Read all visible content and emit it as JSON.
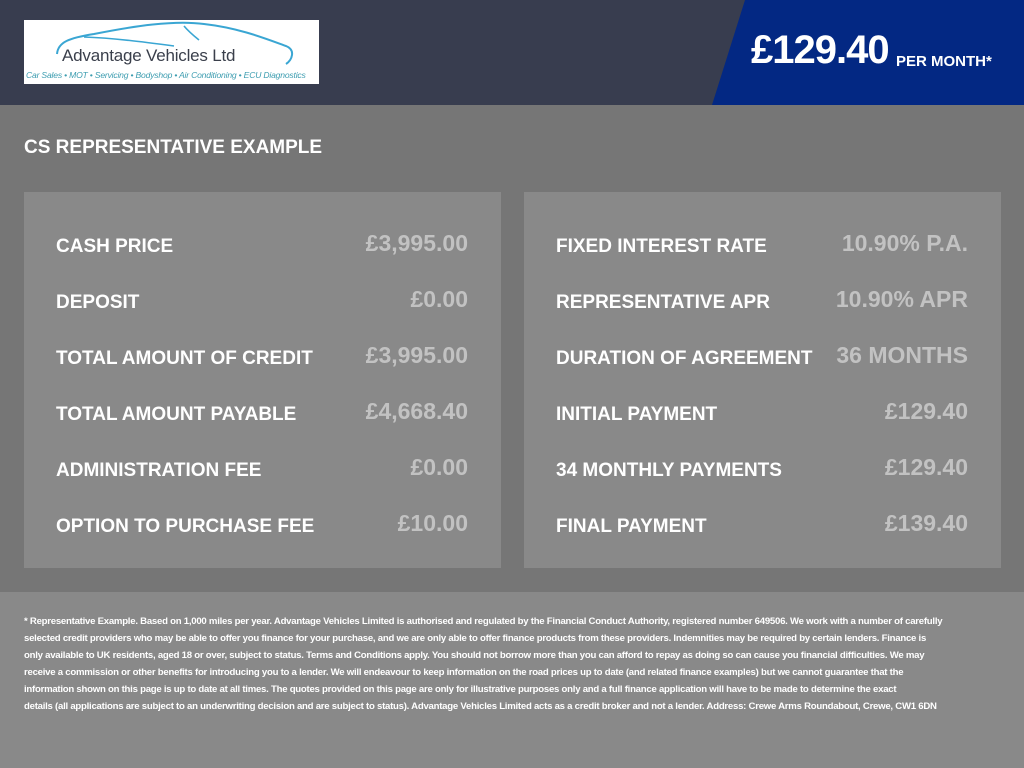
{
  "header": {
    "logo": {
      "name": "Advantage Vehicles Ltd",
      "tagline": "Car Sales • MOT • Servicing • Bodyshop • Air Conditioning • ECU Diagnostics"
    },
    "monthly_price": "£129.40",
    "per_month_label": "PER MONTH*",
    "colors": {
      "header_bg": "#383d4f",
      "price_band": "#032883"
    }
  },
  "section_title": "CS REPRESENTATIVE EXAMPLE",
  "left_panel": [
    {
      "label": "CASH PRICE",
      "value": "£3,995.00"
    },
    {
      "label": "DEPOSIT",
      "value": "£0.00"
    },
    {
      "label": "TOTAL AMOUNT OF CREDIT",
      "value": "£3,995.00"
    },
    {
      "label": "TOTAL AMOUNT PAYABLE",
      "value": "£4,668.40"
    },
    {
      "label": "ADMINISTRATION FEE",
      "value": "£0.00"
    },
    {
      "label": "OPTION TO PURCHASE FEE",
      "value": "£10.00"
    }
  ],
  "right_panel": [
    {
      "label": "FIXED INTEREST RATE",
      "value": "10.90% P.A."
    },
    {
      "label": "REPRESENTATIVE APR",
      "value": "10.90% APR"
    },
    {
      "label": "DURATION OF AGREEMENT",
      "value": "36 MONTHS"
    },
    {
      "label": "INITIAL PAYMENT",
      "value": "£129.40"
    },
    {
      "label": "34 MONTHLY PAYMENTS",
      "value": "£129.40"
    },
    {
      "label": "FINAL PAYMENT",
      "value": "£139.40"
    }
  ],
  "disclaimer_lines": [
    "* Representative Example. Based on 1,000 miles per year. Advantage Vehicles Limited is authorised and regulated by the Financial Conduct Authority, registered number 649506. We work with a number of carefully",
    "selected credit providers who may be able to offer you finance for your purchase, and we are only able to offer finance products from these providers. Indemnities may be required by certain lenders. Finance is",
    "only available to UK residents, aged 18 or over, subject to status. Terms and Conditions apply. You should not borrow more than you can afford to repay as doing so can cause you financial difficulties. We may",
    "receive a commission or other benefits for introducing you to a lender. We will endeavour to keep information on the road prices up to date (and related finance examples) but we cannot guarantee that the",
    "information shown on this page is up to date at all times. The quotes provided on this page are only for illustrative purposes only and a full finance application will have to be made to determine the exact",
    "details (all applications are subject to an underwriting decision and are subject to status). Advantage Vehicles Limited acts as a credit broker and not a lender. Address: Crewe Arms Roundabout, Crewe, CW1 6DN"
  ]
}
